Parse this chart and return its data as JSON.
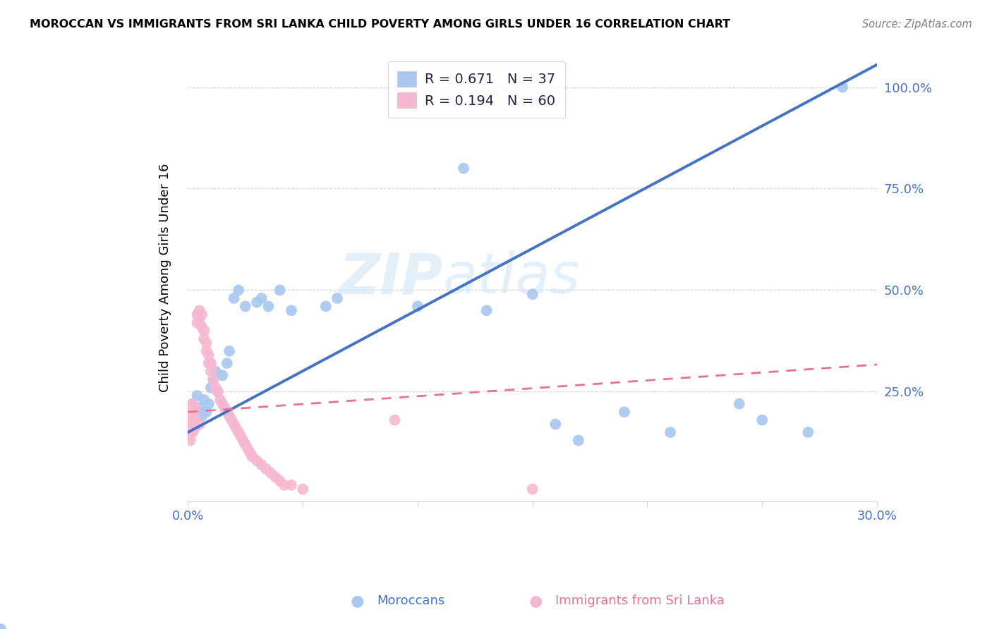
{
  "title": "MOROCCAN VS IMMIGRANTS FROM SRI LANKA CHILD POVERTY AMONG GIRLS UNDER 16 CORRELATION CHART",
  "source": "Source: ZipAtlas.com",
  "ylabel": "Child Poverty Among Girls Under 16",
  "xlim": [
    0.0,
    0.3
  ],
  "ylim": [
    -0.02,
    1.08
  ],
  "ytick_positions": [
    0.0,
    0.25,
    0.5,
    0.75,
    1.0
  ],
  "ytick_labels": [
    "",
    "25.0%",
    "50.0%",
    "75.0%",
    "100.0%"
  ],
  "xtick_positions": [
    0.0,
    0.05,
    0.1,
    0.15,
    0.2,
    0.25,
    0.3
  ],
  "xtick_labels": [
    "0.0%",
    "",
    "",
    "",
    "",
    "",
    "30.0%"
  ],
  "background_color": "#ffffff",
  "watermark": "ZIPatlas",
  "moroccan_color": "#a8c8f0",
  "srilanka_color": "#f5b8d0",
  "moroccan_line_color": "#4472c4",
  "srilanka_line_color": "#e87090",
  "R_moroccan": 0.671,
  "N_moroccan": 37,
  "R_srilanka": 0.194,
  "N_srilanka": 60,
  "moroccan_x": [
    0.002,
    0.003,
    0.004,
    0.005,
    0.006,
    0.007,
    0.008,
    0.009,
    0.01,
    0.011,
    0.012,
    0.013,
    0.015,
    0.017,
    0.018,
    0.02,
    0.022,
    0.025,
    0.03,
    0.032,
    0.035,
    0.04,
    0.045,
    0.06,
    0.065,
    0.1,
    0.12,
    0.13,
    0.15,
    0.16,
    0.17,
    0.19,
    0.21,
    0.24,
    0.25,
    0.27,
    0.285
  ],
  "moroccan_y": [
    0.22,
    0.2,
    0.24,
    0.21,
    0.19,
    0.23,
    0.2,
    0.22,
    0.26,
    0.28,
    0.3,
    0.25,
    0.29,
    0.32,
    0.35,
    0.48,
    0.5,
    0.46,
    0.47,
    0.48,
    0.46,
    0.5,
    0.45,
    0.46,
    0.48,
    0.46,
    0.8,
    0.45,
    0.49,
    0.17,
    0.13,
    0.2,
    0.15,
    0.22,
    0.18,
    0.15,
    1.0
  ],
  "srilanka_x": [
    0.0,
    0.0,
    0.0,
    0.0,
    0.001,
    0.001,
    0.001,
    0.001,
    0.001,
    0.002,
    0.002,
    0.002,
    0.002,
    0.003,
    0.003,
    0.003,
    0.004,
    0.004,
    0.005,
    0.005,
    0.005,
    0.006,
    0.006,
    0.007,
    0.007,
    0.008,
    0.008,
    0.009,
    0.009,
    0.01,
    0.01,
    0.011,
    0.012,
    0.013,
    0.014,
    0.015,
    0.016,
    0.017,
    0.018,
    0.019,
    0.02,
    0.021,
    0.022,
    0.023,
    0.024,
    0.025,
    0.026,
    0.027,
    0.028,
    0.03,
    0.032,
    0.034,
    0.036,
    0.038,
    0.04,
    0.042,
    0.045,
    0.05,
    0.09,
    0.15
  ],
  "srilanka_y": [
    0.16,
    0.18,
    0.2,
    0.14,
    0.15,
    0.17,
    0.19,
    0.13,
    0.21,
    0.2,
    0.22,
    0.15,
    0.17,
    0.19,
    0.21,
    0.16,
    0.42,
    0.44,
    0.43,
    0.45,
    0.17,
    0.41,
    0.44,
    0.38,
    0.4,
    0.35,
    0.37,
    0.32,
    0.34,
    0.3,
    0.32,
    0.28,
    0.26,
    0.25,
    0.23,
    0.22,
    0.21,
    0.2,
    0.19,
    0.18,
    0.17,
    0.16,
    0.15,
    0.14,
    0.13,
    0.12,
    0.11,
    0.1,
    0.09,
    0.08,
    0.07,
    0.06,
    0.05,
    0.04,
    0.03,
    0.02,
    0.02,
    0.01,
    0.18,
    0.01
  ]
}
